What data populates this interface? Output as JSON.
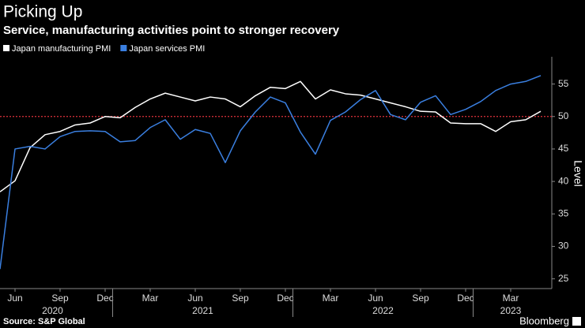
{
  "chart_data": {
    "type": "line",
    "title": "Picking Up",
    "subtitle": "Service, manufacturing activities point to stronger recovery",
    "source": "Source: S&P Global",
    "brand": "Bloomberg",
    "y_label": "Level",
    "categories": [
      null,
      "Jun",
      null,
      null,
      "Sep",
      null,
      null,
      "Dec",
      null,
      null,
      "Mar",
      null,
      null,
      "Jun",
      null,
      null,
      "Sep",
      null,
      null,
      "Dec",
      null,
      null,
      "Mar",
      null,
      null,
      "Jun",
      null,
      null,
      "Sep",
      null,
      null,
      "Dec",
      null,
      null,
      "Mar",
      null,
      null
    ],
    "x_groups": [
      {
        "label": "2020",
        "start": 0,
        "end": 7
      },
      {
        "label": "2021",
        "start": 8,
        "end": 19
      },
      {
        "label": "2022",
        "start": 20,
        "end": 31
      },
      {
        "label": "2023",
        "start": 32,
        "end": 36
      }
    ],
    "series": [
      {
        "name": "Japan manufacturing PMI",
        "color": "#ffffff",
        "values": [
          38.4,
          40.1,
          45.2,
          47.2,
          47.7,
          48.7,
          49.0,
          50.0,
          49.8,
          51.4,
          52.7,
          53.6,
          53.0,
          52.4,
          53.0,
          52.7,
          51.5,
          53.2,
          54.5,
          54.3,
          55.4,
          52.7,
          54.1,
          53.5,
          53.3,
          52.7,
          52.1,
          51.5,
          50.8,
          50.7,
          49.0,
          48.9,
          48.9,
          47.7,
          49.2,
          49.5,
          50.8
        ]
      },
      {
        "name": "Japan services PMI",
        "color": "#3a7fe0",
        "values": [
          26.5,
          45.0,
          45.4,
          45.0,
          46.9,
          47.7,
          47.8,
          47.7,
          46.1,
          46.3,
          48.3,
          49.5,
          46.5,
          48.0,
          47.4,
          42.9,
          47.8,
          50.7,
          53.0,
          52.1,
          47.6,
          44.2,
          49.4,
          50.7,
          52.6,
          54.0,
          50.3,
          49.5,
          52.2,
          53.2,
          50.3,
          51.1,
          52.3,
          54.0,
          55.0,
          55.4,
          56.3
        ]
      }
    ],
    "reference_line": 50,
    "reference_color": "#e0323c",
    "ylim": [
      23.5,
      59.2
    ],
    "yticks": [
      25,
      30,
      35,
      40,
      45,
      50,
      55
    ],
    "grid": false,
    "legend": "top-left"
  }
}
